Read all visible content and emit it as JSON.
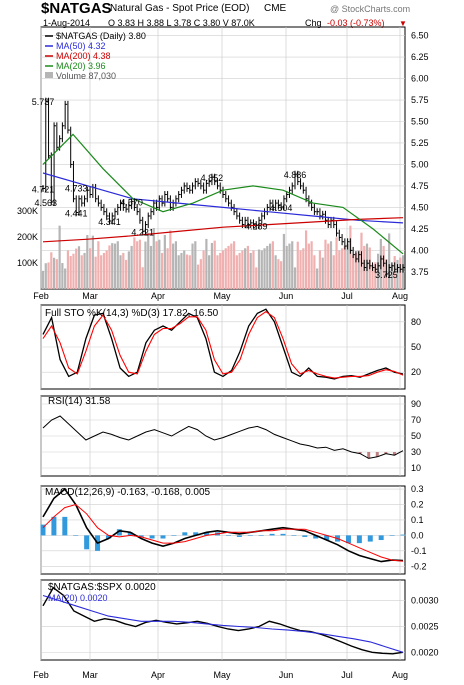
{
  "header": {
    "symbol": "$NATGAS",
    "name": "Natural Gas - Spot Price (EOD)",
    "exchange": "CME",
    "watermark": "@ StockCharts.com",
    "date": "1-Aug-2014",
    "ohlc": "O 3.83  H 3.88  L 3.78  C 3.80  V 87.0K",
    "chg_label": "Chg",
    "chg_value": "-0.03 (-0.73%)"
  },
  "colors": {
    "price": "#000000",
    "ma50": "#2b2bd9",
    "ma200": "#cc0000",
    "ma20": "#1a8a1a",
    "volume_up": "#b5b5b5",
    "volume_down": "#f0b0b0",
    "stoch_d": "#ff0000",
    "macd_hist": "#3399dd",
    "signal": "#ff0000",
    "gridline": "#cfcfcf"
  },
  "chart_data": [
    {
      "type": "line",
      "panel": "price",
      "legend": [
        "$NATGAS (Daily) 3.80",
        "MA(50) 4.32",
        "MA(200) 4.38",
        "MA(20) 3.96",
        "Volume 87,030"
      ],
      "x_tick_labels": [
        "Feb",
        "Mar",
        "Apr",
        "May",
        "Jun",
        "Jul",
        "Aug"
      ],
      "y_tick_labels": [
        "6.50",
        "6.25",
        "6.00",
        "5.75",
        "5.50",
        "5.25",
        "5.00",
        "4.75",
        "4.50",
        "4.25",
        "4.00",
        "3.75"
      ],
      "ylim": [
        3.55,
        6.6
      ],
      "volume_tick_labels": [
        "300K",
        "200K",
        "100K"
      ],
      "volume_ylim": [
        0,
        420000
      ],
      "annotations": [
        {
          "label": "5.737",
          "day": 0,
          "price": 5.737
        },
        {
          "label": "4.721",
          "day": 0,
          "price": 4.721
        },
        {
          "label": "4.563",
          "day": 1,
          "price": 4.563
        },
        {
          "label": "4.441",
          "day": 12,
          "price": 4.441
        },
        {
          "label": "4.733",
          "day": 12,
          "price": 4.733
        },
        {
          "label": "4.341",
          "day": 24,
          "price": 4.341
        },
        {
          "label": "4.570",
          "day": 32,
          "price": 4.57
        },
        {
          "label": "4.221",
          "day": 36,
          "price": 4.221
        },
        {
          "label": "4.852",
          "day": 61,
          "price": 4.852
        },
        {
          "label": "4.289",
          "day": 77,
          "price": 4.289
        },
        {
          "label": "4.504",
          "day": 86,
          "price": 4.504
        },
        {
          "label": "4.886",
          "day": 91,
          "price": 4.886
        },
        {
          "label": "3.725",
          "day": 124,
          "price": 3.725
        }
      ],
      "series": [
        {
          "name": "$NATGAS",
          "values": [
            4.72,
            5.737,
            5.1,
            4.563,
            5.45,
            5.2,
            5.3,
            5.45,
            5.7,
            5.4,
            5.0,
            4.6,
            4.441,
            4.6,
            4.55,
            4.6,
            4.7,
            4.65,
            4.733,
            4.6,
            4.55,
            4.5,
            4.45,
            4.4,
            4.341,
            4.4,
            4.45,
            4.5,
            4.55,
            4.5,
            4.48,
            4.52,
            4.57,
            4.5,
            4.45,
            4.35,
            4.221,
            4.3,
            4.4,
            4.45,
            4.55,
            4.5,
            4.6,
            4.55,
            4.65,
            4.6,
            4.5,
            4.55,
            4.6,
            4.65,
            4.7,
            4.75,
            4.72,
            4.7,
            4.75,
            4.8,
            4.78,
            4.75,
            4.7,
            4.78,
            4.8,
            4.852,
            4.8,
            4.75,
            4.7,
            4.65,
            4.6,
            4.55,
            4.5,
            4.45,
            4.4,
            4.35,
            4.3,
            4.35,
            4.3,
            4.32,
            4.3,
            4.289,
            4.35,
            4.4,
            4.45,
            4.5,
            4.55,
            4.5,
            4.55,
            4.52,
            4.504,
            4.6,
            4.65,
            4.7,
            4.75,
            4.886,
            4.8,
            4.75,
            4.7,
            4.6,
            4.55,
            4.5,
            4.45,
            4.45,
            4.4,
            4.42,
            4.35,
            4.3,
            4.35,
            4.3,
            4.2,
            4.15,
            4.1,
            4.05,
            4.1,
            4.0,
            3.95,
            3.9,
            3.95,
            3.85,
            3.8,
            3.85,
            3.82,
            3.8,
            3.78,
            3.82,
            3.9,
            3.85,
            3.725,
            3.8,
            3.82,
            3.78,
            3.8,
            3.78,
            3.8
          ]
        },
        {
          "name": "MA(50)",
          "values": [
            4.9,
            4.75,
            4.6,
            4.55,
            4.5,
            4.45,
            4.4,
            4.35,
            4.32
          ]
        },
        {
          "name": "MA(200)",
          "values": [
            4.1,
            4.13,
            4.17,
            4.22,
            4.27,
            4.3,
            4.33,
            4.36,
            4.38
          ]
        },
        {
          "name": "MA(20)",
          "values": [
            5.0,
            5.35,
            4.95,
            4.6,
            4.45,
            4.55,
            4.7,
            4.75,
            4.7,
            4.55,
            4.5,
            4.25,
            3.96
          ]
        }
      ]
    },
    {
      "type": "line",
      "panel": "stochastic",
      "legend": [
        "Full STO %K(14,3) %D(3) 17.82, 16.50"
      ],
      "y_tick_labels": [
        "80",
        "50",
        "20"
      ],
      "ylim": [
        0,
        100
      ],
      "series": [
        {
          "name": "%K",
          "values": [
            65,
            85,
            35,
            15,
            20,
            60,
            88,
            90,
            60,
            25,
            15,
            20,
            55,
            70,
            75,
            70,
            80,
            90,
            85,
            60,
            20,
            15,
            22,
            45,
            75,
            90,
            95,
            80,
            50,
            20,
            15,
            25,
            15,
            14,
            12,
            15,
            16,
            14,
            18,
            22,
            25,
            20,
            17.82
          ]
        },
        {
          "name": "%D",
          "values": [
            60,
            75,
            55,
            25,
            18,
            45,
            75,
            88,
            70,
            40,
            20,
            18,
            45,
            65,
            72,
            72,
            78,
            86,
            86,
            70,
            35,
            18,
            20,
            35,
            65,
            85,
            92,
            85,
            60,
            30,
            18,
            22,
            18,
            15,
            13,
            14,
            15,
            15,
            16,
            20,
            23,
            21,
            16.5
          ]
        }
      ]
    },
    {
      "type": "line",
      "panel": "rsi",
      "legend": [
        "RSI(14) 31.58"
      ],
      "y_tick_labels": [
        "90",
        "70",
        "50",
        "30",
        "10"
      ],
      "ylim": [
        0,
        100
      ],
      "series": [
        {
          "name": "RSI(14)",
          "values": [
            60,
            70,
            75,
            65,
            55,
            45,
            50,
            55,
            52,
            48,
            45,
            50,
            55,
            58,
            54,
            50,
            56,
            62,
            58,
            50,
            45,
            48,
            52,
            56,
            60,
            62,
            58,
            52,
            48,
            44,
            40,
            38,
            35,
            36,
            32,
            34,
            30,
            28,
            22,
            24,
            28,
            26,
            31.58
          ]
        }
      ]
    },
    {
      "type": "line",
      "panel": "macd",
      "legend": [
        "MACD(12,26,9) -0.163, -0.168, 0.005"
      ],
      "y_tick_labels": [
        "0.3",
        "0.2",
        "0.1",
        "0.0",
        "-0.1",
        "-0.2"
      ],
      "ylim": [
        -0.25,
        0.32
      ],
      "series": [
        {
          "name": "MACD",
          "values": [
            0.12,
            0.24,
            0.3,
            0.2,
            0.05,
            -0.05,
            -0.02,
            0.03,
            0.02,
            -0.02,
            -0.05,
            -0.07,
            -0.05,
            -0.02,
            0.0,
            0.02,
            0.03,
            0.02,
            0.01,
            0.02,
            0.03,
            0.04,
            0.05,
            0.04,
            0.03,
            0.0,
            -0.03,
            -0.06,
            -0.1,
            -0.13,
            -0.15,
            -0.17,
            -0.16,
            -0.163
          ]
        },
        {
          "name": "Signal",
          "values": [
            0.05,
            0.12,
            0.18,
            0.2,
            0.14,
            0.05,
            0.0,
            -0.01,
            0.0,
            -0.01,
            -0.03,
            -0.05,
            -0.05,
            -0.04,
            -0.02,
            0.0,
            0.01,
            0.02,
            0.02,
            0.02,
            0.03,
            0.03,
            0.04,
            0.04,
            0.04,
            0.02,
            0.0,
            -0.02,
            -0.05,
            -0.08,
            -0.11,
            -0.14,
            -0.16,
            -0.168
          ]
        },
        {
          "name": "Histogram",
          "values": [
            0.07,
            0.12,
            0.12,
            0.0,
            -0.09,
            -0.1,
            -0.02,
            0.04,
            0.02,
            -0.01,
            -0.02,
            -0.02,
            0.0,
            0.02,
            0.02,
            0.02,
            0.02,
            0.0,
            -0.01,
            0.0,
            0.0,
            0.01,
            0.01,
            0.0,
            -0.01,
            -0.02,
            -0.03,
            -0.04,
            -0.05,
            -0.05,
            -0.04,
            -0.03,
            0.0,
            0.005
          ]
        }
      ]
    },
    {
      "type": "line",
      "panel": "ratio",
      "legend": [
        "$NATGAS:$SPX 0.0020",
        "MA(20) 0.0020"
      ],
      "y_tick_labels": [
        "0.0030",
        "0.0025",
        "0.0020"
      ],
      "ylim": [
        0.00185,
        0.0034
      ],
      "series": [
        {
          "name": "$NATGAS:$SPX",
          "values": [
            0.0029,
            0.00325,
            0.0031,
            0.0028,
            0.0027,
            0.0026,
            0.00265,
            0.00262,
            0.00255,
            0.0025,
            0.00258,
            0.00262,
            0.00258,
            0.00255,
            0.00257,
            0.0026,
            0.00256,
            0.0025,
            0.00245,
            0.00242,
            0.00245,
            0.0025,
            0.0026,
            0.00255,
            0.00248,
            0.00242,
            0.0024,
            0.00235,
            0.00228,
            0.0022,
            0.00212,
            0.00205,
            0.002,
            0.00198,
            0.00197,
            0.002
          ]
        },
        {
          "name": "MA(20)",
          "values": [
            0.0031,
            0.003,
            0.0029,
            0.0028,
            0.0027,
            0.00265,
            0.0026,
            0.0026,
            0.0026,
            0.00258,
            0.00255,
            0.00252,
            0.0025,
            0.00248,
            0.00245,
            0.00243,
            0.0024,
            0.00236,
            0.00231,
            0.00226,
            0.0022,
            0.0021,
            0.002
          ]
        }
      ]
    }
  ]
}
